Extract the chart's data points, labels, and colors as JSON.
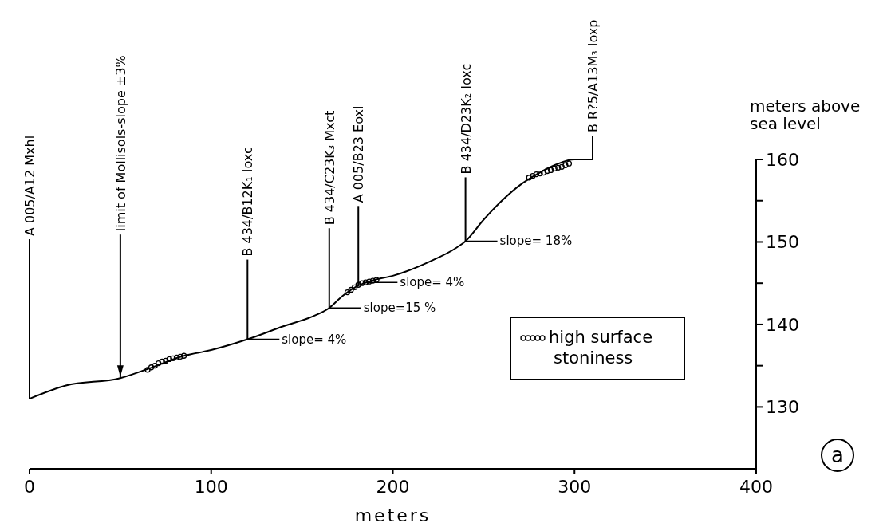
{
  "chart_data": {
    "type": "line",
    "xlabel": "meters",
    "ylabel": "meters above sea level",
    "xlim": [
      0,
      400
    ],
    "xticks": [
      0,
      100,
      200,
      300,
      400
    ],
    "ylim": [
      122.5,
      160
    ],
    "yticks": [
      130,
      {
        "value": 135,
        "label": null
      },
      140,
      {
        "value": 145,
        "label": null
      },
      150,
      {
        "value": 155,
        "label": null
      },
      160
    ],
    "legend": "right",
    "series": [
      {
        "color": "#000000",
        "x": [
          0,
          20,
          50,
          65,
          85,
          100,
          120,
          140,
          155,
          165,
          172,
          180,
          190,
          200,
          220,
          235,
          240,
          250,
          260,
          270,
          280,
          290,
          300,
          310
        ],
        "values": [
          131,
          132.6,
          133.5,
          134.6,
          136.2,
          136.9,
          138.2,
          139.8,
          140.9,
          142,
          143.4,
          144.6,
          145.4,
          145.9,
          147.6,
          149.3,
          150.1,
          152.7,
          155,
          156.9,
          158.3,
          159.4,
          160,
          160
        ]
      },
      {
        "type": "scatter",
        "name": "high surface stoniness",
        "marker": "circle",
        "color": "#000000",
        "x": [
          65,
          67,
          69,
          71,
          73,
          75,
          77,
          79,
          81,
          83,
          85,
          175,
          177,
          179,
          181,
          183,
          185,
          187,
          189,
          191,
          275,
          277,
          279,
          281,
          283,
          285,
          287,
          289,
          291,
          293,
          295,
          297
        ],
        "values": [
          134.5,
          134.8,
          135,
          135.3,
          135.5,
          135.6,
          135.8,
          135.9,
          136,
          136.1,
          136.2,
          143.9,
          144.2,
          144.5,
          144.8,
          145,
          145.1,
          145.2,
          145.3,
          145.4,
          157.8,
          158,
          158.2,
          158.3,
          158.4,
          158.6,
          158.7,
          158.9,
          159,
          159.1,
          159.3,
          159.5
        ]
      }
    ],
    "annotations": [
      {
        "text": "A 005/A12 Mxhl",
        "x": 0,
        "y": 131
      },
      {
        "text": "limit of Mollisols-slope ±3%",
        "x": 50,
        "y": 133.5
      },
      {
        "text": "B 434/B12K₁ Ioxc",
        "x": 120,
        "y": 138.2
      },
      {
        "text": "B 434/C23K₃ Mxct",
        "x": 165,
        "y": 142
      },
      {
        "text": "A 005/B23 Eoxl",
        "x": 181,
        "y": 144.7
      },
      {
        "text": "B 434/D23K₂ Ioxc",
        "x": 240,
        "y": 150.1
      },
      {
        "text": "B R?5/A13M₃ Ioxp",
        "x": 310,
        "y": 160
      },
      {
        "text": "slope= 4%",
        "x": 120,
        "y": 138.2
      },
      {
        "text": "slope=15 %",
        "x": 165,
        "y": 142
      },
      {
        "text": "slope= 4%",
        "x": 185,
        "y": 145.1
      },
      {
        "text": "slope= 18%",
        "x": 240,
        "y": 150.1
      },
      "a"
    ]
  }
}
